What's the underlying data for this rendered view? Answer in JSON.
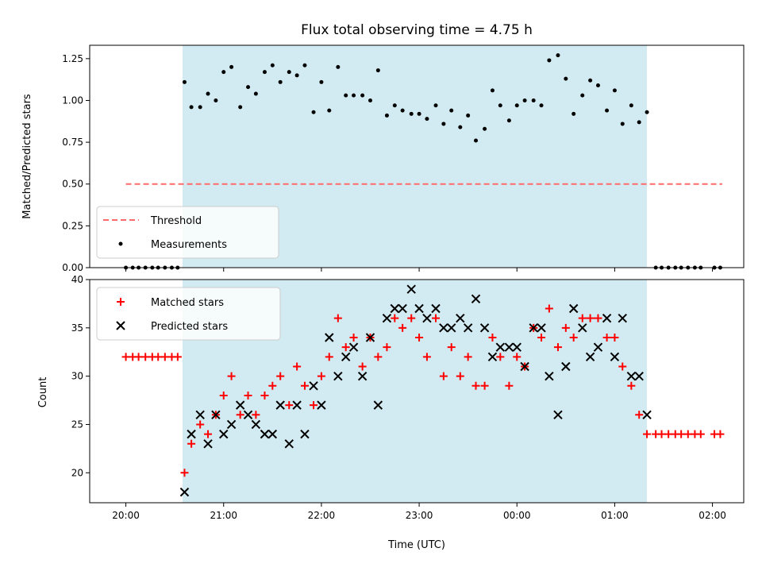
{
  "chart_data": {
    "type": "scatter",
    "title": "Flux total observing time = 4.75 h",
    "xlabel": "Time (UTC)",
    "x_range_hours": [
      19.63,
      26.32
    ],
    "xticks": [
      {
        "value": 20,
        "label": "20:00"
      },
      {
        "value": 21,
        "label": "21:00"
      },
      {
        "value": 22,
        "label": "22:00"
      },
      {
        "value": 23,
        "label": "23:00"
      },
      {
        "value": 24,
        "label": "00:00"
      },
      {
        "value": 25,
        "label": "01:00"
      },
      {
        "value": 26,
        "label": "02:00"
      }
    ],
    "shaded_interval": [
      20.58,
      25.33
    ],
    "shade_color": "#add8e6",
    "top": {
      "ylabel": "Matched/Predicted stars",
      "ylim": [
        0,
        1.33
      ],
      "yticks": [
        "0.00",
        "0.25",
        "0.50",
        "0.75",
        "1.00",
        "1.25"
      ],
      "threshold": 0.5,
      "threshold_x": [
        20.0,
        26.1
      ],
      "threshold_color": "#ff6a6a",
      "legend": [
        "Threshold",
        "Measurements"
      ],
      "zero_times_before": [
        20.0,
        20.07,
        20.13,
        20.2,
        20.27,
        20.33,
        20.4,
        20.47,
        20.53
      ],
      "zero_times_after": [
        25.42,
        25.48,
        25.55,
        25.62,
        25.68,
        25.75,
        25.82,
        25.88,
        26.02,
        26.08
      ],
      "measurements": [
        [
          20.6,
          1.11
        ],
        [
          20.67,
          0.96
        ],
        [
          20.76,
          0.96
        ],
        [
          20.84,
          1.04
        ],
        [
          20.92,
          1.0
        ],
        [
          21.0,
          1.17
        ],
        [
          21.08,
          1.2
        ],
        [
          21.17,
          0.96
        ],
        [
          21.25,
          1.08
        ],
        [
          21.33,
          1.04
        ],
        [
          21.42,
          1.17
        ],
        [
          21.5,
          1.21
        ],
        [
          21.58,
          1.11
        ],
        [
          21.67,
          1.17
        ],
        [
          21.75,
          1.15
        ],
        [
          21.83,
          1.21
        ],
        [
          21.92,
          0.93
        ],
        [
          22.0,
          1.11
        ],
        [
          22.08,
          0.94
        ],
        [
          22.17,
          1.2
        ],
        [
          22.25,
          1.03
        ],
        [
          22.33,
          1.03
        ],
        [
          22.42,
          1.03
        ],
        [
          22.5,
          1.0
        ],
        [
          22.58,
          1.18
        ],
        [
          22.67,
          0.91
        ],
        [
          22.75,
          0.97
        ],
        [
          22.83,
          0.94
        ],
        [
          22.92,
          0.92
        ],
        [
          23.0,
          0.92
        ],
        [
          23.08,
          0.89
        ],
        [
          23.17,
          0.97
        ],
        [
          23.25,
          0.86
        ],
        [
          23.33,
          0.94
        ],
        [
          23.42,
          0.84
        ],
        [
          23.5,
          0.91
        ],
        [
          23.58,
          0.76
        ],
        [
          23.67,
          0.83
        ],
        [
          23.75,
          1.06
        ],
        [
          23.83,
          0.97
        ],
        [
          23.92,
          0.88
        ],
        [
          24.0,
          0.97
        ],
        [
          24.08,
          1.0
        ],
        [
          24.17,
          1.0
        ],
        [
          24.25,
          0.97
        ],
        [
          24.33,
          1.24
        ],
        [
          24.42,
          1.27
        ],
        [
          24.5,
          1.13
        ],
        [
          24.58,
          0.92
        ],
        [
          24.67,
          1.03
        ],
        [
          24.75,
          1.12
        ],
        [
          24.83,
          1.09
        ],
        [
          24.92,
          0.94
        ],
        [
          25.0,
          1.06
        ],
        [
          25.08,
          0.86
        ],
        [
          25.17,
          0.97
        ],
        [
          25.25,
          0.87
        ],
        [
          25.33,
          0.93
        ]
      ]
    },
    "bottom": {
      "ylabel": "Count",
      "ylim": [
        16.9,
        40
      ],
      "yticks": [
        "20",
        "25",
        "30",
        "35",
        "40"
      ],
      "legend": [
        "Matched stars",
        "Predicted stars"
      ],
      "matched_color": "#ff0000",
      "predicted_color": "#000000",
      "matched": [
        [
          20.0,
          32
        ],
        [
          20.07,
          32
        ],
        [
          20.13,
          32
        ],
        [
          20.2,
          32
        ],
        [
          20.27,
          32
        ],
        [
          20.33,
          32
        ],
        [
          20.4,
          32
        ],
        [
          20.47,
          32
        ],
        [
          20.53,
          32
        ],
        [
          20.6,
          20
        ],
        [
          20.67,
          23
        ],
        [
          20.76,
          25
        ],
        [
          20.84,
          24
        ],
        [
          20.92,
          26
        ],
        [
          21.0,
          28
        ],
        [
          21.08,
          30
        ],
        [
          21.17,
          26
        ],
        [
          21.25,
          28
        ],
        [
          21.33,
          26
        ],
        [
          21.42,
          28
        ],
        [
          21.5,
          29
        ],
        [
          21.58,
          30
        ],
        [
          21.67,
          27
        ],
        [
          21.75,
          31
        ],
        [
          21.83,
          29
        ],
        [
          21.92,
          27
        ],
        [
          22.0,
          30
        ],
        [
          22.08,
          32
        ],
        [
          22.17,
          36
        ],
        [
          22.25,
          33
        ],
        [
          22.33,
          34
        ],
        [
          22.42,
          31
        ],
        [
          22.5,
          34
        ],
        [
          22.58,
          32
        ],
        [
          22.67,
          33
        ],
        [
          22.75,
          36
        ],
        [
          22.83,
          35
        ],
        [
          22.92,
          36
        ],
        [
          23.0,
          34
        ],
        [
          23.08,
          32
        ],
        [
          23.17,
          36
        ],
        [
          23.25,
          30
        ],
        [
          23.33,
          33
        ],
        [
          23.42,
          30
        ],
        [
          23.5,
          32
        ],
        [
          23.58,
          29
        ],
        [
          23.67,
          29
        ],
        [
          23.75,
          34
        ],
        [
          23.83,
          32
        ],
        [
          23.92,
          29
        ],
        [
          24.0,
          32
        ],
        [
          24.08,
          31
        ],
        [
          24.17,
          35
        ],
        [
          24.25,
          34
        ],
        [
          24.33,
          37
        ],
        [
          24.42,
          33
        ],
        [
          24.5,
          35
        ],
        [
          24.58,
          34
        ],
        [
          24.67,
          36
        ],
        [
          24.75,
          36
        ],
        [
          24.83,
          36
        ],
        [
          24.92,
          34
        ],
        [
          25.0,
          34
        ],
        [
          25.08,
          31
        ],
        [
          25.17,
          29
        ],
        [
          25.25,
          26
        ],
        [
          25.33,
          24
        ],
        [
          25.42,
          24
        ],
        [
          25.48,
          24
        ],
        [
          25.55,
          24
        ],
        [
          25.62,
          24
        ],
        [
          25.68,
          24
        ],
        [
          25.75,
          24
        ],
        [
          25.82,
          24
        ],
        [
          25.88,
          24
        ],
        [
          26.02,
          24
        ],
        [
          26.08,
          24
        ]
      ],
      "predicted": [
        [
          20.6,
          18
        ],
        [
          20.67,
          24
        ],
        [
          20.76,
          26
        ],
        [
          20.84,
          23
        ],
        [
          20.92,
          26
        ],
        [
          21.0,
          24
        ],
        [
          21.08,
          25
        ],
        [
          21.17,
          27
        ],
        [
          21.25,
          26
        ],
        [
          21.33,
          25
        ],
        [
          21.42,
          24
        ],
        [
          21.5,
          24
        ],
        [
          21.58,
          27
        ],
        [
          21.67,
          23
        ],
        [
          21.75,
          27
        ],
        [
          21.83,
          24
        ],
        [
          21.92,
          29
        ],
        [
          22.0,
          27
        ],
        [
          22.08,
          34
        ],
        [
          22.17,
          30
        ],
        [
          22.25,
          32
        ],
        [
          22.33,
          33
        ],
        [
          22.42,
          30
        ],
        [
          22.5,
          34
        ],
        [
          22.58,
          27
        ],
        [
          22.67,
          36
        ],
        [
          22.75,
          37
        ],
        [
          22.83,
          37
        ],
        [
          22.92,
          39
        ],
        [
          23.0,
          37
        ],
        [
          23.08,
          36
        ],
        [
          23.17,
          37
        ],
        [
          23.25,
          35
        ],
        [
          23.33,
          35
        ],
        [
          23.42,
          36
        ],
        [
          23.5,
          35
        ],
        [
          23.58,
          38
        ],
        [
          23.67,
          35
        ],
        [
          23.75,
          32
        ],
        [
          23.83,
          33
        ],
        [
          23.92,
          33
        ],
        [
          24.0,
          33
        ],
        [
          24.08,
          31
        ],
        [
          24.17,
          35
        ],
        [
          24.25,
          35
        ],
        [
          24.33,
          30
        ],
        [
          24.42,
          26
        ],
        [
          24.5,
          31
        ],
        [
          24.58,
          37
        ],
        [
          24.67,
          35
        ],
        [
          24.75,
          32
        ],
        [
          24.83,
          33
        ],
        [
          24.92,
          36
        ],
        [
          25.0,
          32
        ],
        [
          25.08,
          36
        ],
        [
          25.17,
          30
        ],
        [
          25.25,
          30
        ],
        [
          25.33,
          26
        ]
      ]
    }
  }
}
